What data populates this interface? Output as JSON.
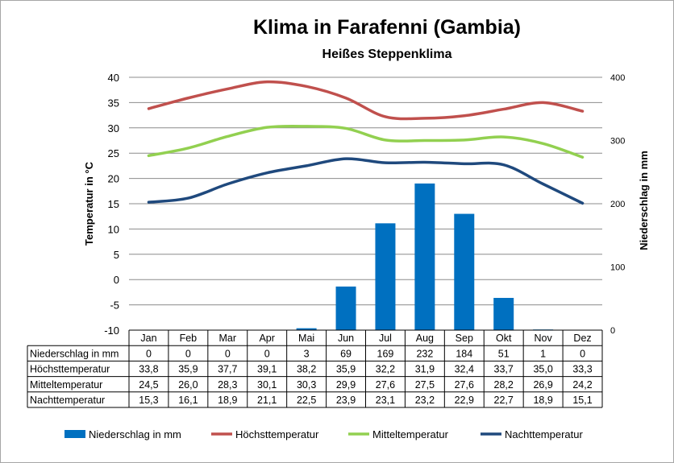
{
  "title": "Klima in Farafenni (Gambia)",
  "subtitle": "Heißes Steppenklima",
  "chart_data": {
    "type": "bar",
    "title": "Klima in Farafenni (Gambia)",
    "subtitle": "Heißes Steppenklima",
    "ylabel": "Temperatur in °C",
    "y2label": "Niederschlag in mm",
    "ylim": [
      -10,
      40
    ],
    "y2lim": [
      0,
      400
    ],
    "yticks": [
      "40",
      "35",
      "30",
      "25",
      "20",
      "15",
      "10",
      "5",
      "0",
      "-5",
      "-10"
    ],
    "y2ticks": [
      "400",
      "300",
      "200",
      "100",
      "0"
    ],
    "grid": true,
    "legend_position": "bottom",
    "categories": [
      "Jan",
      "Feb",
      "Mar",
      "Apr",
      "Mai",
      "Jun",
      "Jul",
      "Aug",
      "Sep",
      "Okt",
      "Nov",
      "Dez"
    ],
    "series": [
      {
        "name": "Niederschlag in mm",
        "type": "bar",
        "axis": "right",
        "color": "#0070C0",
        "values": [
          0,
          0,
          0,
          0,
          3,
          69,
          169,
          232,
          184,
          51,
          1,
          0
        ],
        "labels": [
          "0",
          "0",
          "0",
          "0",
          "3",
          "69",
          "169",
          "232",
          "184",
          "51",
          "1",
          "0"
        ]
      },
      {
        "name": "Höchsttemperatur",
        "type": "line",
        "axis": "left",
        "color": "#C0504D",
        "values": [
          33.8,
          35.9,
          37.7,
          39.1,
          38.2,
          35.9,
          32.2,
          31.9,
          32.4,
          33.7,
          35.0,
          33.3
        ],
        "labels": [
          "33,8",
          "35,9",
          "37,7",
          "39,1",
          "38,2",
          "35,9",
          "32,2",
          "31,9",
          "32,4",
          "33,7",
          "35,0",
          "33,3"
        ]
      },
      {
        "name": "Mitteltemperatur",
        "type": "line",
        "axis": "left",
        "color": "#92D050",
        "values": [
          24.5,
          26.0,
          28.3,
          30.1,
          30.3,
          29.9,
          27.6,
          27.5,
          27.6,
          28.2,
          26.9,
          24.2
        ],
        "labels": [
          "24,5",
          "26,0",
          "28,3",
          "30,1",
          "30,3",
          "29,9",
          "27,6",
          "27,5",
          "27,6",
          "28,2",
          "26,9",
          "24,2"
        ]
      },
      {
        "name": "Nachttemperatur",
        "type": "line",
        "axis": "left",
        "color": "#1F497D",
        "values": [
          15.3,
          16.1,
          18.9,
          21.1,
          22.5,
          23.9,
          23.1,
          23.2,
          22.9,
          22.7,
          18.9,
          15.1
        ],
        "labels": [
          "15,3",
          "16,1",
          "18,9",
          "21,1",
          "22,5",
          "23,9",
          "23,1",
          "23,2",
          "22,9",
          "22,7",
          "18,9",
          "15,1"
        ]
      }
    ]
  }
}
